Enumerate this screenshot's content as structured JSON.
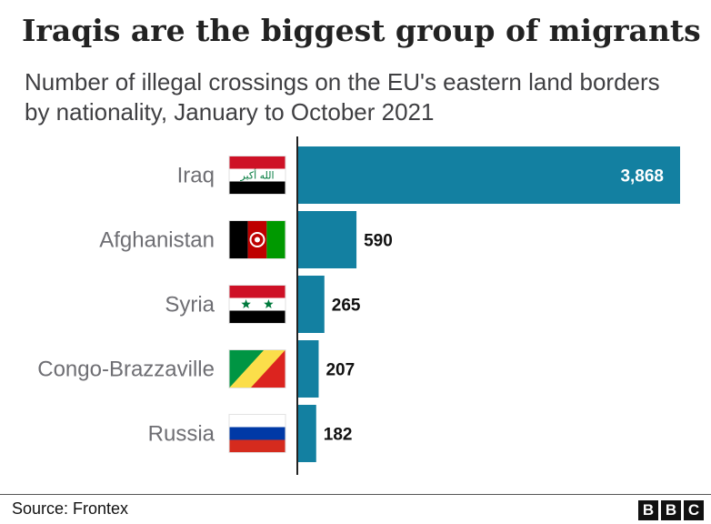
{
  "chart_data": {
    "type": "bar",
    "orientation": "horizontal",
    "title": "Iraqis are the biggest group of migrants",
    "subtitle": "Number of illegal crossings on the EU's eastern land borders by nationality, January to October 2021",
    "categories": [
      "Iraq",
      "Afghanistan",
      "Syria",
      "Congo-Brazzaville",
      "Russia"
    ],
    "values": [
      3868,
      590,
      265,
      207,
      182
    ],
    "value_labels": [
      "3,868",
      "590",
      "265",
      "207",
      "182"
    ],
    "category_icons": [
      "iraq-flag-icon",
      "afghanistan-flag-icon",
      "syria-flag-icon",
      "congo-brazzaville-flag-icon",
      "russia-flag-icon"
    ],
    "xlim": [
      0,
      3868
    ],
    "grid": false,
    "bar_color": "#1380a1"
  },
  "footer": {
    "source": "Source: Frontex",
    "logo": [
      "B",
      "B",
      "C"
    ]
  }
}
